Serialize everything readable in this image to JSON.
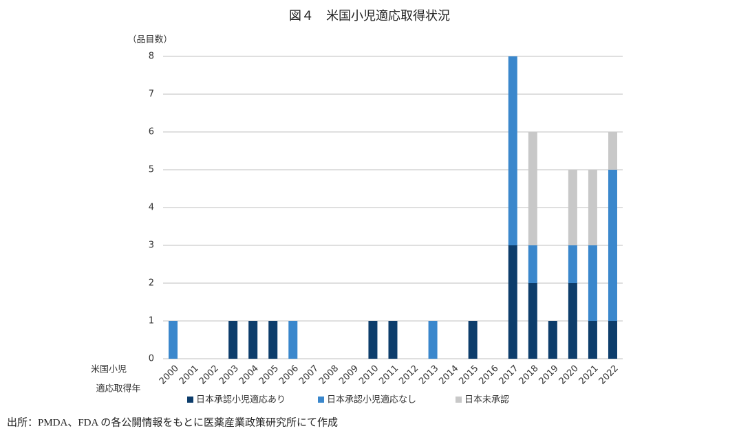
{
  "chart_data": {
    "type": "stacked_bar",
    "title": "図４　米国小児適応取得状況",
    "y_label": "（品目数）",
    "x_label": [
      "米国小児",
      "適応取得年"
    ],
    "source": "出所：PMDA、FDA の各公開情報をもとに医薬産業政策研究所にて作成",
    "categories": [
      "2000",
      "2001",
      "2002",
      "2003",
      "2004",
      "2005",
      "2006",
      "2007",
      "2008",
      "2009",
      "2010",
      "2011",
      "2012",
      "2013",
      "2014",
      "2015",
      "2016",
      "2017",
      "2018",
      "2019",
      "2020",
      "2021",
      "2022"
    ],
    "series": [
      {
        "name": "日本承認小児適応あり",
        "color": "#0d3d6b",
        "values": [
          0,
          0,
          0,
          1,
          1,
          1,
          0,
          0,
          0,
          0,
          1,
          1,
          0,
          0,
          0,
          1,
          0,
          3,
          2,
          1,
          2,
          1,
          1
        ]
      },
      {
        "name": "日本承認小児適応なし",
        "color": "#3a87cc",
        "values": [
          1,
          0,
          0,
          0,
          0,
          0,
          1,
          0,
          0,
          0,
          0,
          0,
          0,
          1,
          0,
          0,
          0,
          5,
          1,
          0,
          1,
          2,
          4
        ]
      },
      {
        "name": "日本未承認",
        "color": "#c8c8c8",
        "values": [
          0,
          0,
          0,
          0,
          0,
          0,
          0,
          0,
          0,
          0,
          0,
          0,
          0,
          0,
          0,
          0,
          0,
          0,
          3,
          0,
          2,
          2,
          1
        ]
      }
    ],
    "ylim": [
      0,
      8
    ],
    "yticks": [
      0,
      1,
      2,
      3,
      4,
      5,
      6,
      7,
      8
    ],
    "grid": true
  }
}
